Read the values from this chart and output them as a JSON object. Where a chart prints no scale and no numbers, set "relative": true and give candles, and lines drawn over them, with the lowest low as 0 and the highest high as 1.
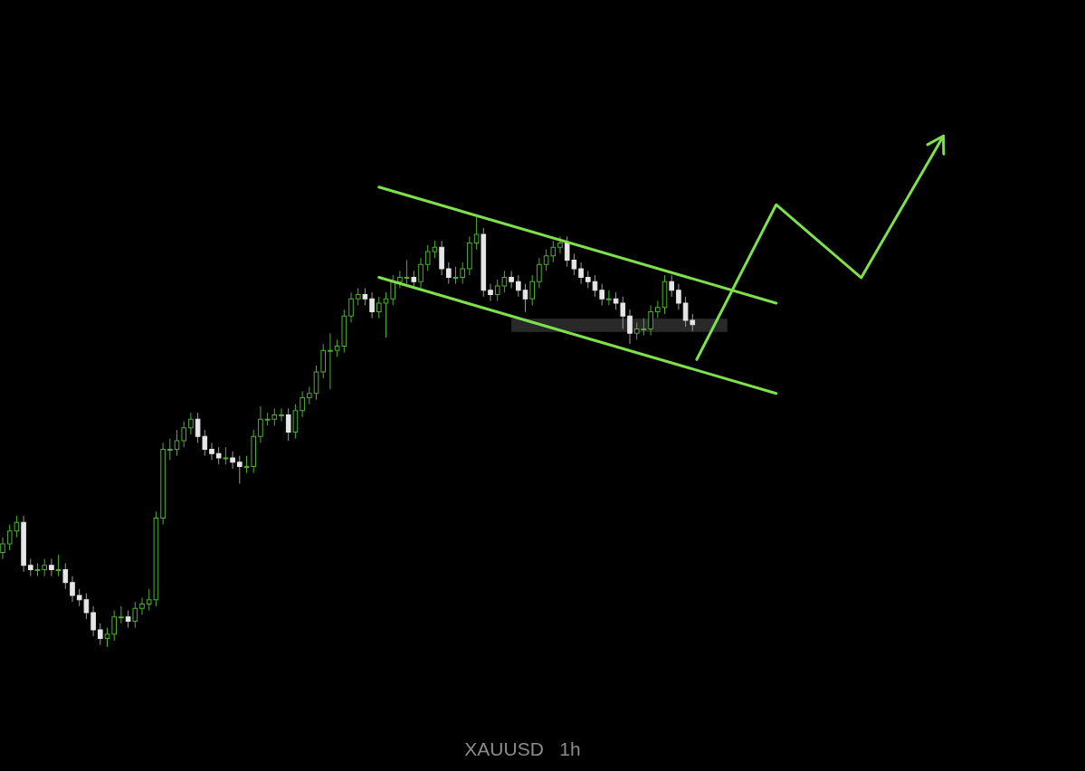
{
  "chart_data": {
    "type": "candlestick",
    "relative": true,
    "title": "XAUUSD   1h",
    "categories": [
      null,
      null,
      null,
      null,
      null,
      null,
      null,
      null,
      null,
      null,
      null,
      null,
      null,
      null,
      null,
      null,
      null,
      null,
      null,
      null,
      null,
      null,
      null,
      null,
      null,
      null,
      null,
      null,
      null,
      null,
      null,
      null,
      null,
      null,
      null,
      null,
      null,
      null,
      null,
      null,
      null,
      null,
      null,
      null,
      null,
      null,
      null,
      null,
      null,
      null,
      null,
      null,
      null,
      null,
      null,
      null,
      null,
      null,
      null,
      null,
      null,
      null,
      null,
      null,
      null,
      null,
      null,
      null,
      null,
      null,
      null,
      null,
      null,
      null,
      null,
      null,
      null,
      null,
      null,
      null,
      null,
      null,
      null,
      null,
      null,
      null,
      null,
      null,
      null,
      null,
      null,
      null,
      null,
      null,
      null,
      null,
      null,
      null,
      null,
      null,
      null,
      null,
      null,
      null,
      null,
      null,
      null,
      null,
      null,
      null,
      null,
      null,
      null,
      null,
      null,
      null,
      null,
      null,
      null,
      null,
      null,
      null,
      null,
      null,
      null,
      null,
      null,
      null,
      null,
      null,
      null,
      null,
      null,
      null,
      null,
      null,
      null
    ],
    "ohlc": [
      [
        0.22,
        0.255,
        0.205,
        0.24
      ],
      [
        0.24,
        0.285,
        0.225,
        0.27
      ],
      [
        0.27,
        0.305,
        0.255,
        0.29
      ],
      [
        0.29,
        0.305,
        0.175,
        0.19
      ],
      [
        0.19,
        0.205,
        0.165,
        0.18
      ],
      [
        0.18,
        0.195,
        0.165,
        0.18
      ],
      [
        0.18,
        0.205,
        0.165,
        0.19
      ],
      [
        0.19,
        0.205,
        0.165,
        0.18
      ],
      [
        0.18,
        0.215,
        0.165,
        0.18
      ],
      [
        0.18,
        0.195,
        0.135,
        0.15
      ],
      [
        0.15,
        0.165,
        0.105,
        0.12
      ],
      [
        0.12,
        0.135,
        0.095,
        0.11
      ],
      [
        0.11,
        0.125,
        0.065,
        0.08
      ],
      [
        0.08,
        0.095,
        0.025,
        0.04
      ],
      [
        0.04,
        0.055,
        0.005,
        0.02
      ],
      [
        0.02,
        0.045,
        0,
        0.03
      ],
      [
        0.03,
        0.085,
        0.015,
        0.07
      ],
      [
        0.07,
        0.095,
        0.055,
        0.07
      ],
      [
        0.07,
        0.085,
        0.045,
        0.06
      ],
      [
        0.06,
        0.105,
        0.045,
        0.09
      ],
      [
        0.09,
        0.115,
        0.075,
        0.1
      ],
      [
        0.1,
        0.135,
        0.085,
        0.11
      ],
      [
        0.11,
        0.315,
        0.095,
        0.3
      ],
      [
        0.3,
        0.475,
        0.285,
        0.46
      ],
      [
        0.46,
        0.485,
        0.435,
        0.46
      ],
      [
        0.46,
        0.505,
        0.445,
        0.48
      ],
      [
        0.48,
        0.525,
        0.465,
        0.51
      ],
      [
        0.51,
        0.545,
        0.495,
        0.53
      ],
      [
        0.53,
        0.545,
        0.475,
        0.49
      ],
      [
        0.49,
        0.505,
        0.445,
        0.46
      ],
      [
        0.46,
        0.475,
        0.435,
        0.45
      ],
      [
        0.45,
        0.465,
        0.425,
        0.44
      ],
      [
        0.44,
        0.465,
        0.425,
        0.44
      ],
      [
        0.44,
        0.455,
        0.415,
        0.43
      ],
      [
        0.43,
        0.445,
        0.38,
        0.42
      ],
      [
        0.42,
        0.445,
        0.405,
        0.42
      ],
      [
        0.42,
        0.505,
        0.405,
        0.49
      ],
      [
        0.49,
        0.56,
        0.475,
        0.53
      ],
      [
        0.53,
        0.545,
        0.515,
        0.53
      ],
      [
        0.53,
        0.555,
        0.515,
        0.54
      ],
      [
        0.54,
        0.555,
        0.525,
        0.54
      ],
      [
        0.54,
        0.555,
        0.48,
        0.5
      ],
      [
        0.5,
        0.565,
        0.485,
        0.55
      ],
      [
        0.55,
        0.595,
        0.535,
        0.58
      ],
      [
        0.58,
        0.605,
        0.565,
        0.59
      ],
      [
        0.59,
        0.655,
        0.575,
        0.64
      ],
      [
        0.64,
        0.705,
        0.625,
        0.69
      ],
      [
        0.69,
        0.73,
        0.6,
        0.69
      ],
      [
        0.69,
        0.715,
        0.675,
        0.7
      ],
      [
        0.7,
        0.785,
        0.685,
        0.77
      ],
      [
        0.77,
        0.825,
        0.755,
        0.81
      ],
      [
        0.81,
        0.835,
        0.795,
        0.82
      ],
      [
        0.82,
        0.835,
        0.795,
        0.81
      ],
      [
        0.81,
        0.825,
        0.765,
        0.78
      ],
      [
        0.78,
        0.815,
        0.765,
        0.8
      ],
      [
        0.8,
        0.825,
        0.72,
        0.81
      ],
      [
        0.81,
        0.865,
        0.795,
        0.85
      ],
      [
        0.85,
        0.875,
        0.835,
        0.86
      ],
      [
        0.86,
        0.9,
        0.845,
        0.86
      ],
      [
        0.86,
        0.875,
        0.835,
        0.85
      ],
      [
        0.85,
        0.905,
        0.835,
        0.89
      ],
      [
        0.89,
        0.935,
        0.875,
        0.92
      ],
      [
        0.92,
        0.945,
        0.905,
        0.93
      ],
      [
        0.93,
        0.945,
        0.865,
        0.88
      ],
      [
        0.88,
        0.895,
        0.845,
        0.86
      ],
      [
        0.86,
        0.885,
        0.845,
        0.86
      ],
      [
        0.86,
        0.895,
        0.845,
        0.88
      ],
      [
        0.88,
        0.955,
        0.865,
        0.94
      ],
      [
        0.94,
        1,
        0.925,
        0.96
      ],
      [
        0.96,
        0.975,
        0.815,
        0.83
      ],
      [
        0.83,
        0.845,
        0.805,
        0.82
      ],
      [
        0.82,
        0.855,
        0.805,
        0.84
      ],
      [
        0.84,
        0.875,
        0.825,
        0.86
      ],
      [
        0.86,
        0.875,
        0.835,
        0.85
      ],
      [
        0.85,
        0.865,
        0.815,
        0.83
      ],
      [
        0.83,
        0.845,
        0.78,
        0.81
      ],
      [
        0.81,
        0.865,
        0.795,
        0.85
      ],
      [
        0.85,
        0.905,
        0.835,
        0.89
      ],
      [
        0.89,
        0.925,
        0.875,
        0.91
      ],
      [
        0.91,
        0.945,
        0.895,
        0.93
      ],
      [
        0.93,
        0.955,
        0.915,
        0.94
      ],
      [
        0.94,
        0.955,
        0.885,
        0.9
      ],
      [
        0.9,
        0.915,
        0.865,
        0.88
      ],
      [
        0.88,
        0.895,
        0.845,
        0.86
      ],
      [
        0.86,
        0.875,
        0.835,
        0.85
      ],
      [
        0.85,
        0.865,
        0.815,
        0.83
      ],
      [
        0.83,
        0.845,
        0.795,
        0.81
      ],
      [
        0.81,
        0.83,
        0.795,
        0.81
      ],
      [
        0.81,
        0.825,
        0.785,
        0.8
      ],
      [
        0.8,
        0.815,
        0.74,
        0.77
      ],
      [
        0.77,
        0.785,
        0.705,
        0.73
      ],
      [
        0.73,
        0.755,
        0.715,
        0.74
      ],
      [
        0.74,
        0.765,
        0.725,
        0.74
      ],
      [
        0.74,
        0.795,
        0.725,
        0.78
      ],
      [
        0.78,
        0.805,
        0.765,
        0.79
      ],
      [
        0.79,
        0.865,
        0.775,
        0.85
      ],
      [
        0.85,
        0.865,
        0.815,
        0.83
      ],
      [
        0.83,
        0.845,
        0.785,
        0.8
      ],
      [
        0.8,
        0.815,
        0.745,
        0.76
      ],
      [
        0.76,
        0.775,
        0.735,
        0.75
      ],
      null,
      null,
      null,
      null,
      null,
      null,
      null,
      null,
      null,
      null,
      null,
      null,
      null,
      null,
      null,
      null,
      null,
      null,
      null,
      null,
      null,
      null,
      null,
      null,
      null,
      null,
      null,
      null,
      null,
      null,
      null,
      null,
      null,
      null,
      null,
      null,
      null
    ],
    "series": [
      {
        "type": "line",
        "color": "#7ee04c",
        "values": [
          null,
          null,
          null,
          null,
          null,
          null,
          null,
          null,
          null,
          null,
          null,
          null,
          null,
          null,
          null,
          null,
          null,
          null,
          null,
          null,
          null,
          null,
          null,
          null,
          null,
          null,
          null,
          null,
          null,
          null,
          null,
          null,
          null,
          null,
          null,
          null,
          null,
          null,
          null,
          null,
          null,
          null,
          null,
          null,
          null,
          null,
          null,
          null,
          null,
          null,
          null,
          null,
          null,
          null,
          1.07,
          null,
          null,
          null,
          null,
          null,
          null,
          null,
          null,
          null,
          null,
          null,
          null,
          null,
          null,
          null,
          null,
          null,
          null,
          null,
          null,
          null,
          null,
          null,
          null,
          null,
          null,
          null,
          null,
          null,
          null,
          null,
          null,
          null,
          null,
          null,
          null,
          null,
          null,
          null,
          null,
          null,
          null,
          null,
          null,
          null,
          null,
          null,
          null,
          null,
          null,
          null,
          null,
          null,
          null,
          null,
          null,
          0.8,
          null,
          null,
          null,
          null,
          null,
          null,
          null,
          null,
          null,
          null,
          null,
          null,
          null,
          null,
          null,
          null,
          null,
          null,
          null,
          null,
          null,
          null,
          null,
          null,
          null
        ]
      },
      {
        "type": "line",
        "color": "#7ee04c",
        "values": [
          null,
          null,
          null,
          null,
          null,
          null,
          null,
          null,
          null,
          null,
          null,
          null,
          null,
          null,
          null,
          null,
          null,
          null,
          null,
          null,
          null,
          null,
          null,
          null,
          null,
          null,
          null,
          null,
          null,
          null,
          null,
          null,
          null,
          null,
          null,
          null,
          null,
          null,
          null,
          null,
          null,
          null,
          null,
          null,
          null,
          null,
          null,
          null,
          null,
          null,
          null,
          null,
          null,
          null,
          0.86,
          null,
          null,
          null,
          null,
          null,
          null,
          null,
          null,
          null,
          null,
          null,
          null,
          null,
          null,
          null,
          null,
          null,
          null,
          null,
          null,
          null,
          null,
          null,
          null,
          null,
          null,
          null,
          null,
          null,
          null,
          null,
          null,
          null,
          null,
          null,
          null,
          null,
          null,
          null,
          null,
          null,
          null,
          null,
          null,
          null,
          null,
          null,
          null,
          null,
          null,
          null,
          null,
          null,
          null,
          null,
          null,
          0.59,
          null,
          null,
          null,
          null,
          null,
          null,
          null,
          null,
          null,
          null,
          null,
          null,
          null,
          null,
          null,
          null,
          null,
          null,
          null,
          null,
          null,
          null,
          null,
          null,
          null
        ]
      }
    ],
    "bands": [
      {
        "axis": "y",
        "from": 0.733,
        "to": 0.764,
        "color": "#2e2e2e"
      }
    ]
  }
}
